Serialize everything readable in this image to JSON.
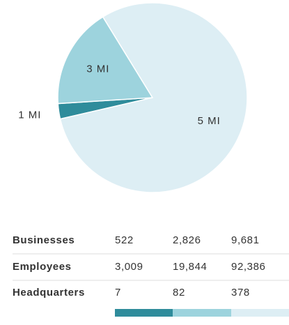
{
  "chart_data": {
    "type": "pie",
    "categories": [
      "1 MI",
      "3 MI",
      "5 MI"
    ],
    "values": [
      3009,
      19844,
      92386
    ],
    "colors": [
      "#2f8c9b",
      "#9dd3dd",
      "#ddeef4"
    ]
  },
  "table": {
    "rows": [
      {
        "label": "Businesses",
        "cells": [
          "522",
          "2,826",
          "9,681"
        ]
      },
      {
        "label": "Employees",
        "cells": [
          "3,009",
          "19,844",
          "92,386"
        ]
      },
      {
        "label": "Headquarters",
        "cells": [
          "7",
          "82",
          "378"
        ]
      }
    ]
  }
}
